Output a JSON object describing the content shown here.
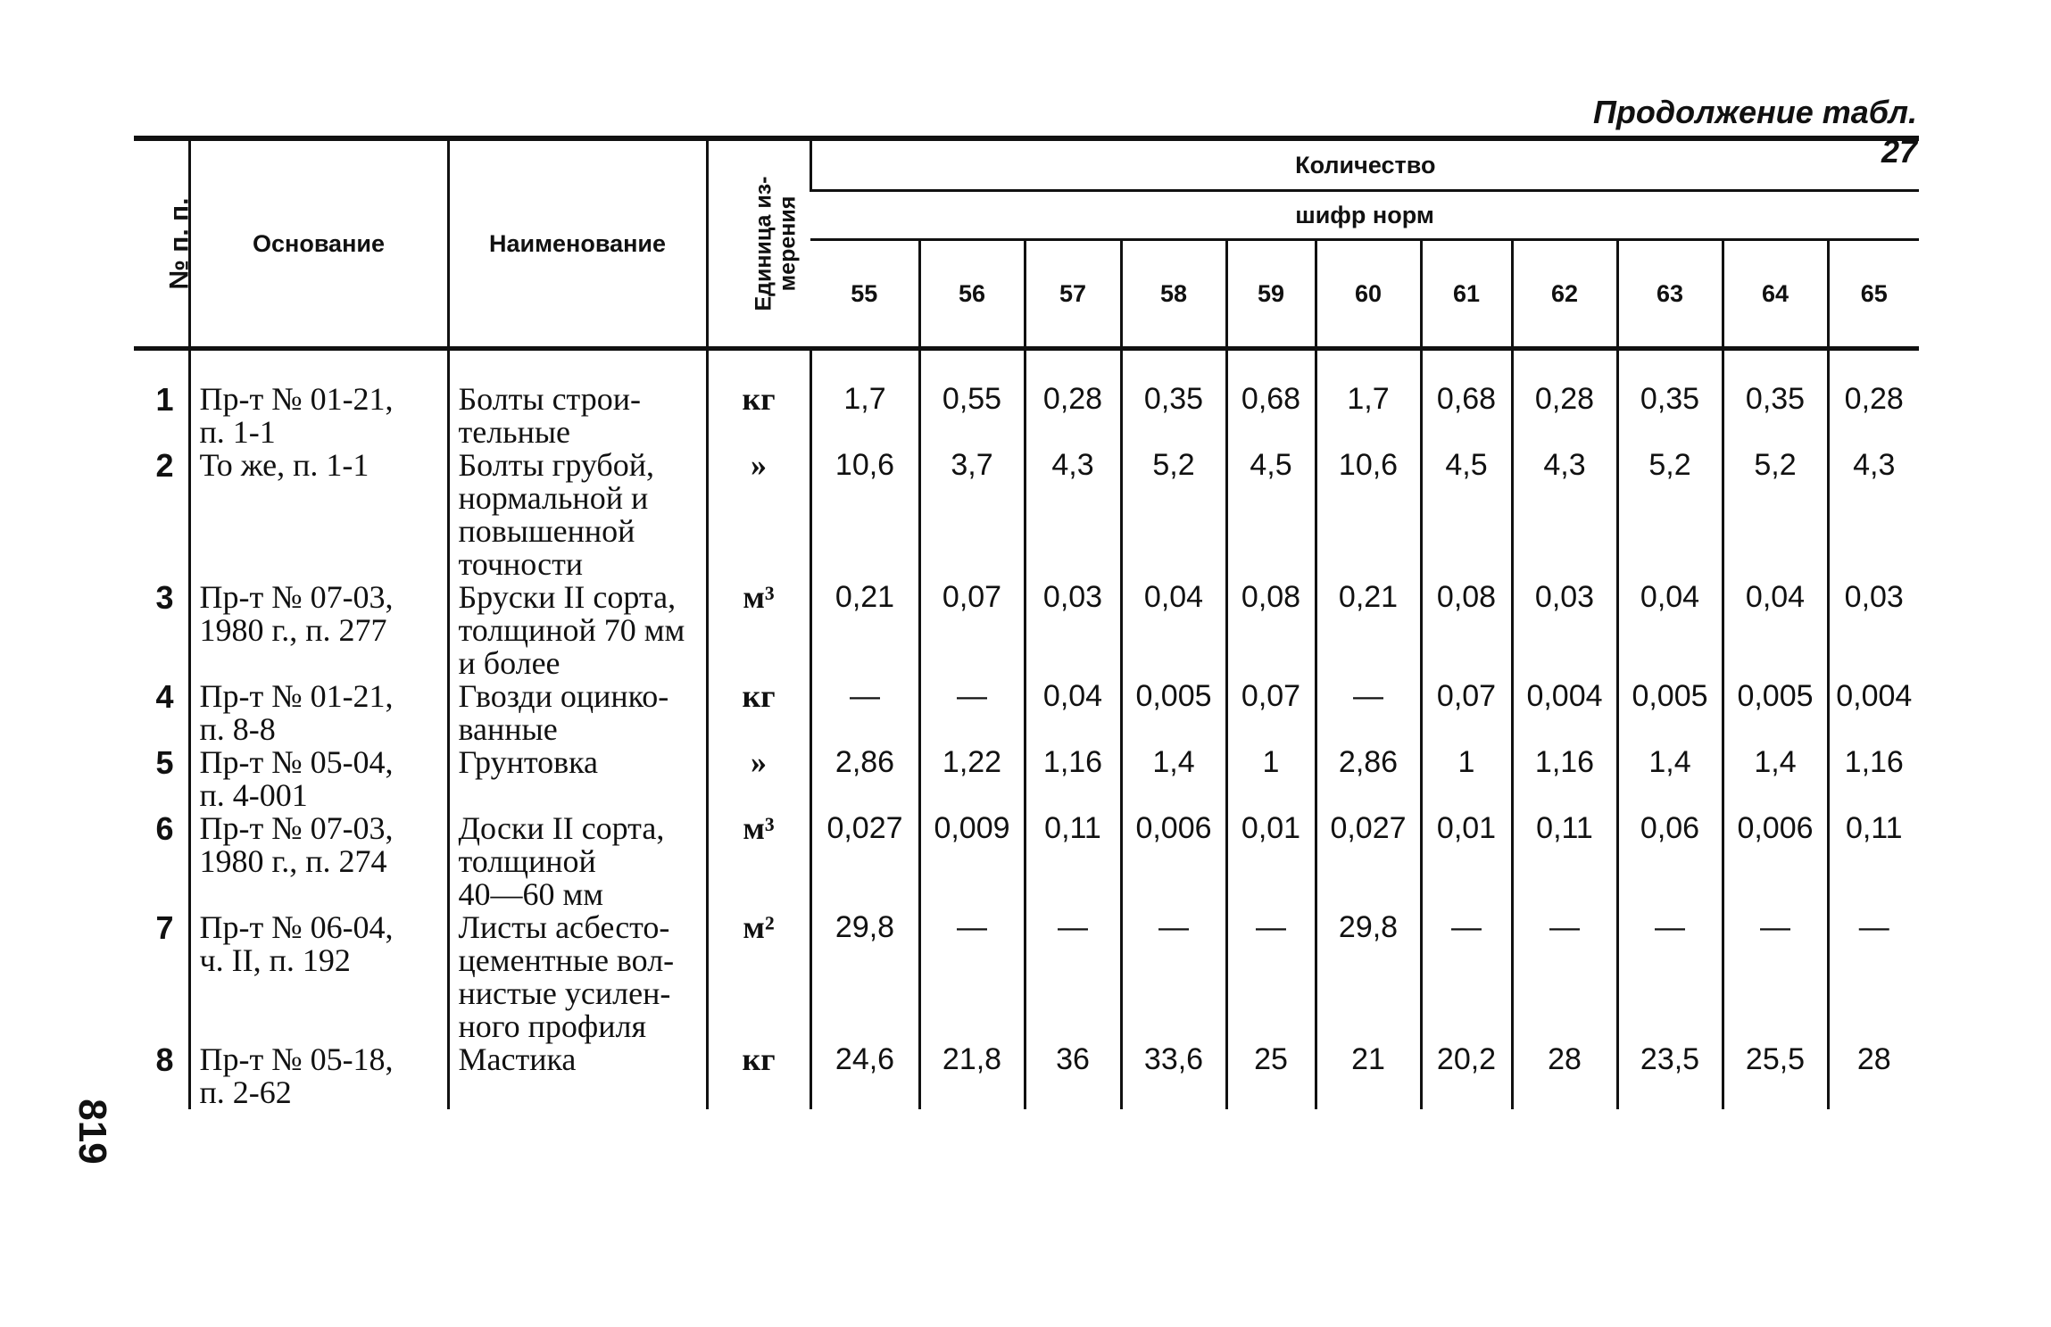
{
  "caption": "Продолжение табл. 27",
  "page_number": "819",
  "header": {
    "num": "№ п. п.",
    "basis": "Основание",
    "name": "Наименование",
    "unit": "Единица из-\nмерения",
    "quantity": "Количество",
    "norm_code": "шифр норм",
    "codes": [
      "55",
      "56",
      "57",
      "58",
      "59",
      "60",
      "61",
      "62",
      "63",
      "64",
      "65"
    ]
  },
  "rows": [
    {
      "n": "1",
      "basis": "Пр-т № 01-21,\nп. 1-1",
      "name": "Болты строи-\nтельные",
      "unit": "кг",
      "values": [
        "1,7",
        "0,55",
        "0,28",
        "0,35",
        "0,68",
        "1,7",
        "0,68",
        "0,28",
        "0,35",
        "0,35",
        "0,28"
      ]
    },
    {
      "n": "2",
      "basis": "То же, п. 1-1",
      "name": "Болты грубой,\nнормальной и\nповышенной\nточности",
      "unit": "»",
      "values": [
        "10,6",
        "3,7",
        "4,3",
        "5,2",
        "4,5",
        "10,6",
        "4,5",
        "4,3",
        "5,2",
        "5,2",
        "4,3"
      ]
    },
    {
      "n": "3",
      "basis": "Пр-т № 07-03,\n1980 г., п. 277",
      "name": "Бруски II сорта,\nтолщиной 70 мм\nи более",
      "unit": "м³",
      "values": [
        "0,21",
        "0,07",
        "0,03",
        "0,04",
        "0,08",
        "0,21",
        "0,08",
        "0,03",
        "0,04",
        "0,04",
        "0,03"
      ]
    },
    {
      "n": "4",
      "basis": "Пр-т № 01-21,\nп. 8-8",
      "name": "Гвозди оцинко-\nванные",
      "unit": "кг",
      "values": [
        "—",
        "—",
        "0,04",
        "0,005",
        "0,07",
        "—",
        "0,07",
        "0,004",
        "0,005",
        "0,005",
        "0,004"
      ]
    },
    {
      "n": "5",
      "basis": "Пр-т № 05-04,\nп. 4-001",
      "name": "Грунтовка",
      "unit": "»",
      "values": [
        "2,86",
        "1,22",
        "1,16",
        "1,4",
        "1",
        "2,86",
        "1",
        "1,16",
        "1,4",
        "1,4",
        "1,16"
      ]
    },
    {
      "n": "6",
      "basis": "Пр-т № 07-03,\n1980 г., п. 274",
      "name": "Доски II сорта,\nтолщиной\n40—60 мм",
      "unit": "м³",
      "values": [
        "0,027",
        "0,009",
        "0,11",
        "0,006",
        "0,01",
        "0,027",
        "0,01",
        "0,11",
        "0,06",
        "0,006",
        "0,11"
      ]
    },
    {
      "n": "7",
      "basis": "Пр-т № 06-04,\nч. II, п. 192",
      "name": "Листы асбесто-\nцементные вол-\nнистые усилен-\nного профиля",
      "unit": "м²",
      "values": [
        "29,8",
        "—",
        "—",
        "—",
        "—",
        "29,8",
        "—",
        "—",
        "—",
        "—",
        "—"
      ]
    },
    {
      "n": "8",
      "basis": "Пр-т № 05-18,\nп. 2-62",
      "name": "Мастика",
      "unit": "кг",
      "values": [
        "24,6",
        "21,8",
        "36",
        "33,6",
        "25",
        "21",
        "20,2",
        "28",
        "23,5",
        "25,5",
        "28"
      ]
    }
  ]
}
